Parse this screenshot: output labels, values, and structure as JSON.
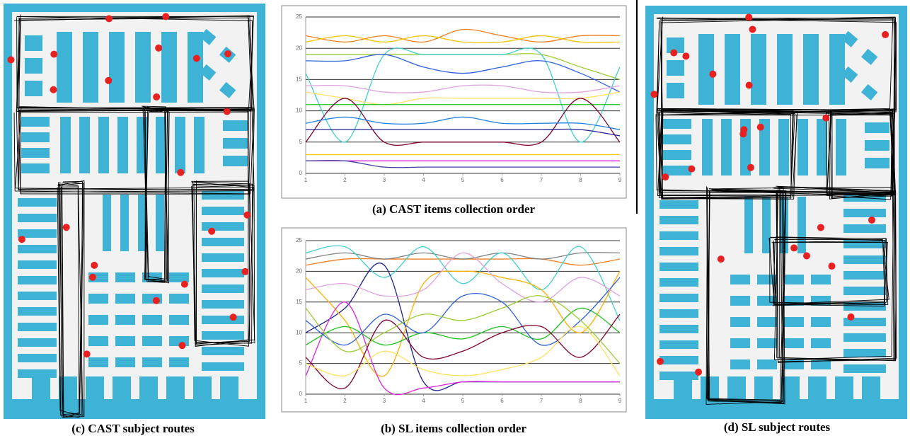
{
  "chart_data": [
    {
      "type": "line",
      "title": "(a) CAST items collection order",
      "x": [
        1,
        2,
        3,
        4,
        5,
        6,
        7,
        8,
        9
      ],
      "xlim": [
        1,
        9
      ],
      "xticks": [
        1,
        2,
        3,
        4,
        5,
        6,
        7,
        8,
        9
      ],
      "ylim": [
        0,
        25
      ],
      "yticks": [
        0,
        5,
        10,
        15,
        20,
        25
      ],
      "grid": true,
      "series": [
        {
          "color": "#f07f1f",
          "values": [
            22,
            21,
            22,
            21,
            23,
            22,
            21,
            22,
            22
          ]
        },
        {
          "color": "#f5c400",
          "values": [
            21,
            22,
            21,
            22,
            21,
            21,
            22,
            21,
            21
          ]
        },
        {
          "color": "#9acd32",
          "values": [
            19,
            19,
            19,
            19,
            19,
            19,
            19,
            17,
            15
          ]
        },
        {
          "color": "#40d0d0",
          "values": [
            16,
            5,
            19,
            19,
            19,
            19,
            19,
            5,
            17
          ]
        },
        {
          "color": "#3060e0",
          "values": [
            18,
            18,
            19,
            17,
            16,
            17,
            18,
            16,
            13
          ]
        },
        {
          "color": "#e0a0e0",
          "values": [
            14,
            14,
            13,
            13,
            14,
            14,
            13,
            13,
            14
          ]
        },
        {
          "color": "#ffe060",
          "values": [
            13,
            12,
            11,
            12,
            12,
            12,
            12,
            12,
            13
          ]
        },
        {
          "color": "#20c020",
          "values": [
            11,
            11,
            11,
            11,
            11,
            11,
            11,
            11,
            11
          ]
        },
        {
          "color": "#800030",
          "values": [
            5,
            12,
            5,
            5,
            5,
            5,
            5,
            12,
            5
          ]
        },
        {
          "color": "#2080e0",
          "values": [
            8,
            9,
            8,
            8,
            9,
            8,
            8,
            8,
            7
          ]
        },
        {
          "color": "#202090",
          "values": [
            7,
            7,
            7,
            7,
            7,
            7,
            7,
            7,
            6
          ]
        },
        {
          "color": "#ffd000",
          "values": [
            3,
            3,
            3,
            3,
            3,
            3,
            3,
            3,
            3
          ]
        },
        {
          "color": "#e020e0",
          "values": [
            2,
            2,
            2,
            2,
            2,
            2,
            2,
            2,
            2
          ]
        },
        {
          "color": "#4040a0",
          "values": [
            2,
            2,
            1,
            1,
            1,
            1,
            1,
            1,
            1
          ]
        }
      ]
    },
    {
      "type": "line",
      "title": "(b) SL items collection order",
      "x": [
        1,
        2,
        3,
        4,
        5,
        6,
        7,
        8,
        9
      ],
      "xlim": [
        1,
        9
      ],
      "xticks": [
        1,
        2,
        3,
        4,
        5,
        6,
        7,
        8,
        9
      ],
      "ylim": [
        0,
        25
      ],
      "yticks": [
        0,
        5,
        10,
        15,
        20,
        25
      ],
      "grid": true,
      "series": [
        {
          "color": "#f07f1f",
          "values": [
            21,
            22,
            22,
            22,
            22,
            22,
            22,
            21,
            22
          ]
        },
        {
          "color": "#808080",
          "values": [
            22,
            23,
            22,
            23,
            22,
            23,
            22,
            23,
            23
          ]
        },
        {
          "color": "#40d0d0",
          "values": [
            23,
            24,
            19,
            24,
            18,
            23,
            17,
            24,
            12
          ]
        },
        {
          "color": "#202090",
          "values": [
            10,
            14,
            21,
            2,
            2,
            2,
            2,
            2,
            2
          ]
        },
        {
          "color": "#ffb000",
          "values": [
            19,
            12,
            3,
            18,
            20,
            19,
            17,
            10,
            20
          ]
        },
        {
          "color": "#e020e0",
          "values": [
            3,
            15,
            1,
            1,
            2,
            2,
            2,
            2,
            2
          ]
        },
        {
          "color": "#20c020",
          "values": [
            8,
            11,
            8,
            10,
            9,
            11,
            9,
            14,
            10
          ]
        },
        {
          "color": "#3060e0",
          "values": [
            12,
            8,
            13,
            10,
            16,
            15,
            8,
            12,
            19
          ]
        },
        {
          "color": "#800030",
          "values": [
            6,
            1,
            12,
            6,
            7,
            10,
            11,
            6,
            13
          ]
        },
        {
          "color": "#e0a0e0",
          "values": [
            17,
            18,
            16,
            17,
            23,
            18,
            15,
            19,
            16
          ]
        },
        {
          "color": "#9acd32",
          "values": [
            14,
            7,
            10,
            13,
            12,
            14,
            16,
            12,
            5
          ]
        },
        {
          "color": "#ffe060",
          "values": [
            5,
            3,
            7,
            4,
            3,
            4,
            6,
            11,
            3
          ]
        }
      ]
    }
  ],
  "maps": [
    {
      "caption": "(c) CAST subject routes"
    },
    {
      "caption": "(d) SL subject routes"
    }
  ]
}
